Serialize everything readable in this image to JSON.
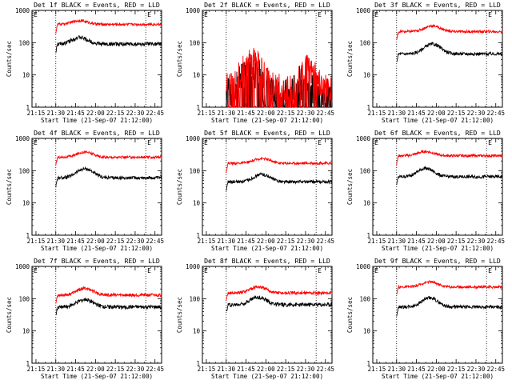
{
  "figure": {
    "title_suffix": " BLACK = Events, RED = LLD",
    "ylabel": "Counts/sec",
    "xlabel": "Start Time (21-Sep-07 21:12:00)",
    "marker_label": "E",
    "colors": {
      "events": "#000000",
      "lld": "#ff0000",
      "axes": "#000000",
      "background": "#ffffff"
    }
  },
  "chart_data": [
    {
      "type": "line",
      "title": "Det 1f BLACK = Events, RED = LLD",
      "xlabel": "Start Time (21-Sep-07 21:12:00)",
      "ylabel": "Counts/sec",
      "x_ticks": [
        "21:15",
        "21:30",
        "21:45",
        "22:00",
        "22:15",
        "22:30",
        "22:45"
      ],
      "y_ticks": [
        "1",
        "10",
        "100",
        "1000"
      ],
      "ylim": [
        1,
        1000
      ],
      "yscale": "log",
      "xlim_minutes": [
        0,
        98
      ],
      "event_markers_min": [
        18,
        86
      ],
      "series": [
        {
          "name": "Events",
          "color": "#000000",
          "start_min": 18,
          "end_min": 98,
          "level": 90,
          "bump": 1.6,
          "peak_min": 36,
          "noise": 0.06
        },
        {
          "name": "LLD",
          "color": "#ff0000",
          "start_min": 18,
          "end_min": 98,
          "level": 370,
          "bump": 1.3,
          "peak_min": 36,
          "noise": 0.04
        }
      ]
    },
    {
      "type": "line",
      "title": "Det 2f BLACK = Events, RED = LLD",
      "xlabel": "Start Time (21-Sep-07 21:12:00)",
      "ylabel": "Counts/sec",
      "x_ticks": [
        "21:15",
        "21:30",
        "21:45",
        "22:00",
        "22:15",
        "22:30",
        "22:45"
      ],
      "y_ticks": [
        "1",
        "10",
        "100",
        "1000"
      ],
      "ylim": [
        1,
        1000
      ],
      "yscale": "log",
      "xlim_minutes": [
        0,
        98
      ],
      "event_markers_min": [
        18,
        86
      ],
      "series": [
        {
          "name": "Events",
          "color": "#000000",
          "start_min": 18,
          "end_min": 98,
          "level": 2,
          "bump": 6,
          "peak_min": 37,
          "noise": 0.6,
          "second_peak_min": 78
        },
        {
          "name": "LLD",
          "color": "#ff0000",
          "start_min": 18,
          "end_min": 98,
          "level": 4,
          "bump": 7,
          "peak_min": 37,
          "noise": 0.45,
          "second_peak_min": 80
        }
      ]
    },
    {
      "type": "line",
      "title": "Det 3f BLACK = Events, RED = LLD",
      "xlabel": "Start Time (21-Sep-07 21:12:00)",
      "ylabel": "Counts/sec",
      "x_ticks": [
        "21:15",
        "21:30",
        "21:45",
        "22:00",
        "22:15",
        "22:30",
        "22:45"
      ],
      "y_ticks": [
        "1",
        "10",
        "100",
        "1000"
      ],
      "ylim": [
        1,
        1000
      ],
      "yscale": "log",
      "xlim_minutes": [
        0,
        98
      ],
      "event_markers_min": [
        18,
        86
      ],
      "series": [
        {
          "name": "Events",
          "color": "#000000",
          "start_min": 18,
          "end_min": 98,
          "level": 45,
          "bump": 2.0,
          "peak_min": 45,
          "noise": 0.05
        },
        {
          "name": "LLD",
          "color": "#ff0000",
          "start_min": 18,
          "end_min": 98,
          "level": 220,
          "bump": 1.5,
          "peak_min": 45,
          "noise": 0.04
        }
      ]
    },
    {
      "type": "line",
      "title": "Det 4f BLACK = Events, RED = LLD",
      "xlabel": "Start Time (21-Sep-07 21:12:00)",
      "ylabel": "Counts/sec",
      "x_ticks": [
        "21:15",
        "21:30",
        "21:45",
        "22:00",
        "22:15",
        "22:30",
        "22:45"
      ],
      "y_ticks": [
        "1",
        "10",
        "100",
        "1000"
      ],
      "ylim": [
        1,
        1000
      ],
      "yscale": "log",
      "xlim_minutes": [
        0,
        98
      ],
      "event_markers_min": [
        18,
        86
      ],
      "series": [
        {
          "name": "Events",
          "color": "#000000",
          "start_min": 18,
          "end_min": 98,
          "level": 60,
          "bump": 1.9,
          "peak_min": 40,
          "noise": 0.05
        },
        {
          "name": "LLD",
          "color": "#ff0000",
          "start_min": 18,
          "end_min": 98,
          "level": 260,
          "bump": 1.45,
          "peak_min": 40,
          "noise": 0.04
        }
      ]
    },
    {
      "type": "line",
      "title": "Det 5f BLACK = Events, RED = LLD",
      "xlabel": "Start Time (21-Sep-07 21:12:00)",
      "ylabel": "Counts/sec",
      "x_ticks": [
        "21:15",
        "21:30",
        "21:45",
        "22:00",
        "22:15",
        "22:30",
        "22:45"
      ],
      "y_ticks": [
        "1",
        "10",
        "100",
        "1000"
      ],
      "ylim": [
        1,
        1000
      ],
      "yscale": "log",
      "xlim_minutes": [
        0,
        98
      ],
      "event_markers_min": [
        18,
        86
      ],
      "series": [
        {
          "name": "Events",
          "color": "#000000",
          "start_min": 18,
          "end_min": 98,
          "level": 45,
          "bump": 1.7,
          "peak_min": 45,
          "noise": 0.05
        },
        {
          "name": "LLD",
          "color": "#ff0000",
          "start_min": 18,
          "end_min": 98,
          "level": 170,
          "bump": 1.4,
          "peak_min": 45,
          "noise": 0.04
        }
      ]
    },
    {
      "type": "line",
      "title": "Det 6f BLACK = Events, RED = LLD",
      "xlabel": "Start Time (21-Sep-07 21:12:00)",
      "ylabel": "Counts/sec",
      "x_ticks": [
        "21:15",
        "21:30",
        "21:45",
        "22:00",
        "22:15",
        "22:30",
        "22:45"
      ],
      "y_ticks": [
        "1",
        "10",
        "100",
        "1000"
      ],
      "ylim": [
        1,
        1000
      ],
      "yscale": "log",
      "xlim_minutes": [
        0,
        98
      ],
      "event_markers_min": [
        18,
        86
      ],
      "series": [
        {
          "name": "Events",
          "color": "#000000",
          "start_min": 18,
          "end_min": 98,
          "level": 65,
          "bump": 1.8,
          "peak_min": 40,
          "noise": 0.05
        },
        {
          "name": "LLD",
          "color": "#ff0000",
          "start_min": 18,
          "end_min": 98,
          "level": 290,
          "bump": 1.35,
          "peak_min": 40,
          "noise": 0.04
        }
      ]
    },
    {
      "type": "line",
      "title": "Det 7f BLACK = Events, RED = LLD",
      "xlabel": "Start Time (21-Sep-07 21:12:00)",
      "ylabel": "Counts/sec",
      "x_ticks": [
        "21:15",
        "21:30",
        "21:45",
        "22:00",
        "22:15",
        "22:30",
        "22:45"
      ],
      "y_ticks": [
        "1",
        "10",
        "100",
        "1000"
      ],
      "ylim": [
        1,
        1000
      ],
      "yscale": "log",
      "xlim_minutes": [
        0,
        98
      ],
      "event_markers_min": [
        18,
        86
      ],
      "series": [
        {
          "name": "Events",
          "color": "#000000",
          "start_min": 18,
          "end_min": 98,
          "level": 55,
          "bump": 1.7,
          "peak_min": 40,
          "noise": 0.06
        },
        {
          "name": "LLD",
          "color": "#ff0000",
          "start_min": 18,
          "end_min": 98,
          "level": 130,
          "bump": 1.6,
          "peak_min": 40,
          "noise": 0.05
        }
      ]
    },
    {
      "type": "line",
      "title": "Det 8f BLACK = Events, RED = LLD",
      "xlabel": "Start Time (21-Sep-07 21:12:00)",
      "ylabel": "Counts/sec",
      "x_ticks": [
        "21:15",
        "21:30",
        "21:45",
        "22:00",
        "22:15",
        "22:30",
        "22:45"
      ],
      "y_ticks": [
        "1",
        "10",
        "100",
        "1000"
      ],
      "ylim": [
        1,
        1000
      ],
      "yscale": "log",
      "xlim_minutes": [
        0,
        98
      ],
      "event_markers_min": [
        18,
        86
      ],
      "series": [
        {
          "name": "Events",
          "color": "#000000",
          "start_min": 18,
          "end_min": 98,
          "level": 65,
          "bump": 1.7,
          "peak_min": 42,
          "noise": 0.06
        },
        {
          "name": "LLD",
          "color": "#ff0000",
          "start_min": 18,
          "end_min": 98,
          "level": 150,
          "bump": 1.55,
          "peak_min": 42,
          "noise": 0.05
        }
      ]
    },
    {
      "type": "line",
      "title": "Det 9f BLACK = Events, RED = LLD",
      "xlabel": "Start Time (21-Sep-07 21:12:00)",
      "ylabel": "Counts/sec",
      "x_ticks": [
        "21:15",
        "21:30",
        "21:45",
        "22:00",
        "22:15",
        "22:30",
        "22:45"
      ],
      "y_ticks": [
        "1",
        "10",
        "100",
        "1000"
      ],
      "ylim": [
        1,
        1000
      ],
      "yscale": "log",
      "xlim_minutes": [
        0,
        98
      ],
      "event_markers_min": [
        18,
        86
      ],
      "series": [
        {
          "name": "Events",
          "color": "#000000",
          "start_min": 18,
          "end_min": 98,
          "level": 55,
          "bump": 1.9,
          "peak_min": 43,
          "noise": 0.05
        },
        {
          "name": "LLD",
          "color": "#ff0000",
          "start_min": 18,
          "end_min": 98,
          "level": 230,
          "bump": 1.45,
          "peak_min": 43,
          "noise": 0.04
        }
      ]
    }
  ]
}
